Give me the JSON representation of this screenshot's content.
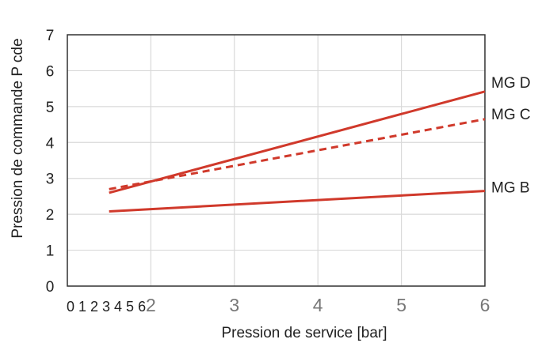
{
  "chart_data": {
    "type": "line",
    "title": "",
    "xlabel": "Pression de service [bar]",
    "ylabel": "Pression de commande P cde",
    "xlim": [
      1,
      6
    ],
    "ylim": [
      0,
      7
    ],
    "grid": true,
    "x_ticks_major": [
      "2",
      "3",
      "4",
      "5",
      "6"
    ],
    "x_ticks_minor_text": "0 1 2 3 4 5 6",
    "y_ticks": [
      "0",
      "1",
      "2",
      "3",
      "4",
      "5",
      "6",
      "7"
    ],
    "series": [
      {
        "name": "MG D",
        "style": "solid",
        "color": "#d0392b",
        "x": [
          1.5,
          6
        ],
        "y": [
          2.6,
          5.42
        ]
      },
      {
        "name": "MG C",
        "style": "dashed",
        "color": "#d0392b",
        "x": [
          1.5,
          6
        ],
        "y": [
          2.7,
          4.65
        ]
      },
      {
        "name": "MG B",
        "style": "solid",
        "color": "#d0392b",
        "x": [
          1.5,
          6
        ],
        "y": [
          2.08,
          2.65
        ]
      }
    ]
  }
}
